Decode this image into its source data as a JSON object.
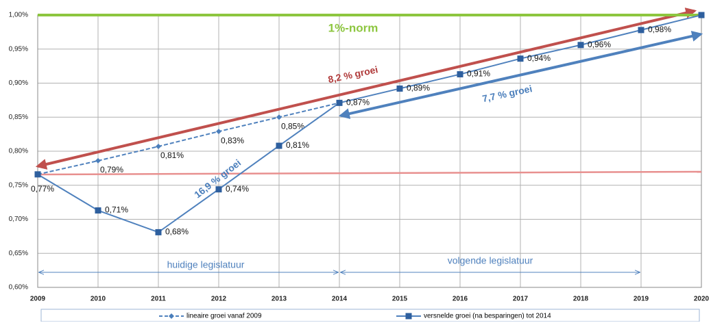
{
  "chart_data": {
    "type": "line",
    "x": [
      2009,
      2010,
      2011,
      2012,
      2013,
      2014,
      2015,
      2016,
      2017,
      2018,
      2019,
      2020
    ],
    "xlim": [
      2009,
      2020
    ],
    "xticks": [
      2009,
      2010,
      2011,
      2012,
      2013,
      2014,
      2015,
      2016,
      2017,
      2018,
      2019,
      2020
    ],
    "ylim": [
      0.6,
      1.0
    ],
    "yticks": [
      {
        "value": 0.6,
        "label": "0,60%"
      },
      {
        "value": 0.65,
        "label": "0,65%"
      },
      {
        "value": 0.7,
        "label": "0,70%"
      },
      {
        "value": 0.75,
        "label": "0,75%"
      },
      {
        "value": 0.8,
        "label": "0,80%"
      },
      {
        "value": 0.85,
        "label": "0,85%"
      },
      {
        "value": 0.9,
        "label": "0,90%"
      },
      {
        "value": 0.95,
        "label": "0,95%"
      },
      {
        "value": 1.0,
        "label": "1,00%"
      }
    ],
    "grid": true,
    "series": [
      {
        "name": "lineaire groei vanaf 2009",
        "color": "#4a7ebb",
        "dashed": true,
        "marker": "diamond",
        "values": [
          0.766,
          0.786,
          0.807,
          0.829,
          0.85,
          0.871,
          null,
          null,
          null,
          null,
          null,
          null
        ],
        "value_labels": [
          "0,77%",
          "0,79%",
          "0,81%",
          "0,83%",
          "0,85%",
          null,
          null,
          null,
          null,
          null,
          null,
          null
        ]
      },
      {
        "name": "versnelde groei (na besparingen) tot 2014",
        "color": "#2e5f9e",
        "dashed": false,
        "marker": "square",
        "values": [
          0.766,
          0.713,
          0.681,
          0.744,
          0.808,
          0.871,
          0.892,
          0.913,
          0.936,
          0.956,
          0.978,
          1.0
        ],
        "value_labels": [
          null,
          "0,71%",
          "0,68%",
          "0,74%",
          "0,81%",
          "0,87%",
          "0,89%",
          "0,91%",
          "0,94%",
          "0,96%",
          "0,98%",
          null
        ]
      }
    ],
    "norm_line": {
      "value": 1.0,
      "label": "1%-norm",
      "color": "#8dc63f"
    },
    "annotations": [
      "8,2 % groei",
      "7,7 % groei",
      "16,9 % groei",
      "huidige legislatuur",
      "volgende legislatuur"
    ]
  }
}
